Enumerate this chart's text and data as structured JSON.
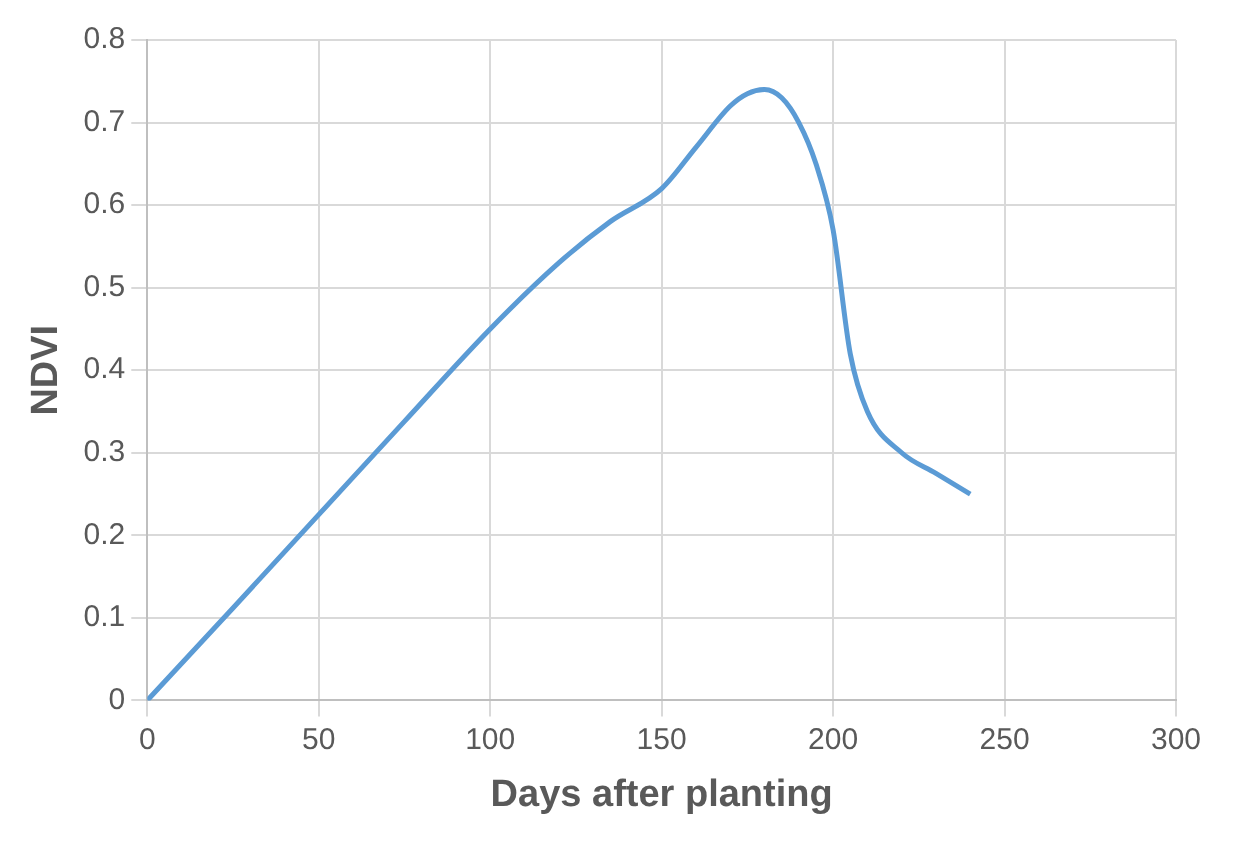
{
  "chart_data": {
    "type": "line",
    "xlabel": "Days after planting",
    "ylabel": "NDVI",
    "x": [
      0,
      25,
      50,
      75,
      100,
      120,
      135,
      150,
      160,
      170,
      175,
      180,
      185,
      190,
      195,
      200,
      205,
      210,
      220,
      230,
      240
    ],
    "series": [
      {
        "color": "#5b9bd5",
        "values": [
          0,
          0.112,
          0.225,
          0.338,
          0.45,
          0.53,
          0.58,
          0.62,
          0.67,
          0.72,
          0.735,
          0.74,
          0.73,
          0.7,
          0.65,
          0.57,
          0.42,
          0.35,
          0.3,
          0.275,
          0.25
        ]
      }
    ],
    "xlim": [
      0,
      300
    ],
    "xticks": [
      0,
      50,
      100,
      150,
      200,
      250,
      300
    ],
    "ylim": [
      0,
      0.8
    ],
    "yticks": [
      0,
      0.1,
      0.2,
      0.3,
      0.4,
      0.5,
      0.6,
      0.7,
      0.8
    ],
    "grid": true,
    "legend": false,
    "marker": "none",
    "line_style": "solid"
  }
}
